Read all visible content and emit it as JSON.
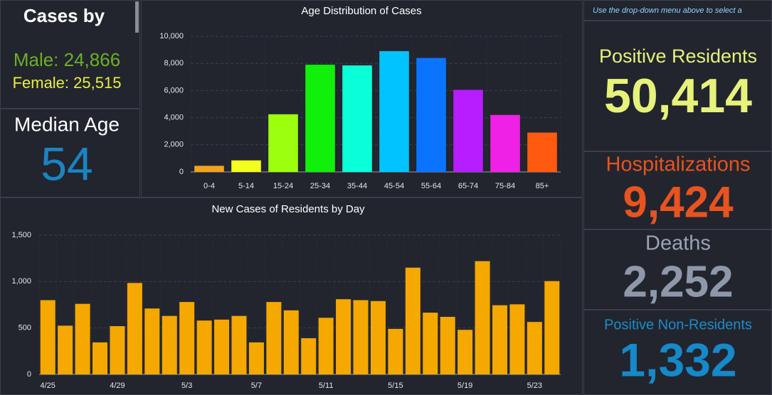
{
  "panels": {
    "cases_by": {
      "title": "Cases by",
      "male": "Male: 24,866",
      "female": "Female: 25,515"
    },
    "median_age": {
      "label": "Median Age",
      "value": "54"
    },
    "note": "Use the drop-down menu above to select a",
    "positive_residents": {
      "label": "Positive Residents",
      "value": "50,414"
    },
    "hospitalizations": {
      "label": "Hospitalizations",
      "value": "9,424"
    },
    "deaths": {
      "label": "Deaths",
      "value": "2,252"
    },
    "positive_non_residents": {
      "label": "Positive Non-Residents",
      "value": "1,332"
    }
  },
  "chart_data": [
    {
      "type": "bar",
      "title": "Age Distribution of Cases",
      "categories": [
        "0-4",
        "5-14",
        "15-24",
        "25-34",
        "35-44",
        "45-54",
        "55-64",
        "65-74",
        "75-84",
        "85+"
      ],
      "values": [
        450,
        850,
        4250,
        7900,
        7850,
        8900,
        8400,
        6050,
        4200,
        2900
      ],
      "colors": [
        "#f7a21b",
        "#f4ff1f",
        "#9bff0d",
        "#10f00a",
        "#0affd8",
        "#00c3ff",
        "#0a74ff",
        "#b61dff",
        "#f021e6",
        "#ff5a10"
      ],
      "ylim": [
        0,
        10000
      ],
      "yticks": [
        0,
        {
          "value": 2000,
          "label": "2,000"
        },
        {
          "value": 4000,
          "label": "4,000"
        },
        {
          "value": 6000,
          "label": "6,000"
        },
        {
          "value": 8000,
          "label": "8,000"
        },
        {
          "value": 10000,
          "label": "10,000"
        }
      ],
      "grid": true
    },
    {
      "type": "bar",
      "title": "New Cases of Residents by Day",
      "categories": [
        "4/25",
        null,
        null,
        null,
        "4/29",
        null,
        null,
        null,
        "5/3",
        null,
        null,
        null,
        "5/7",
        null,
        null,
        null,
        "5/11",
        null,
        null,
        null,
        "5/15",
        null,
        null,
        null,
        "5/19",
        null,
        null,
        null,
        "5/23",
        null
      ],
      "values": [
        800,
        525,
        760,
        345,
        520,
        985,
        710,
        630,
        780,
        580,
        590,
        630,
        345,
        780,
        690,
        390,
        610,
        810,
        800,
        790,
        490,
        1150,
        665,
        620,
        480,
        1220,
        745,
        755,
        565,
        1005
      ],
      "color": "#f5a800",
      "ylim": [
        0,
        1500
      ],
      "yticks": [
        0,
        500,
        {
          "value": 1000,
          "label": "1,000"
        },
        {
          "value": 1500,
          "label": "1,500"
        }
      ],
      "grid": true
    }
  ]
}
